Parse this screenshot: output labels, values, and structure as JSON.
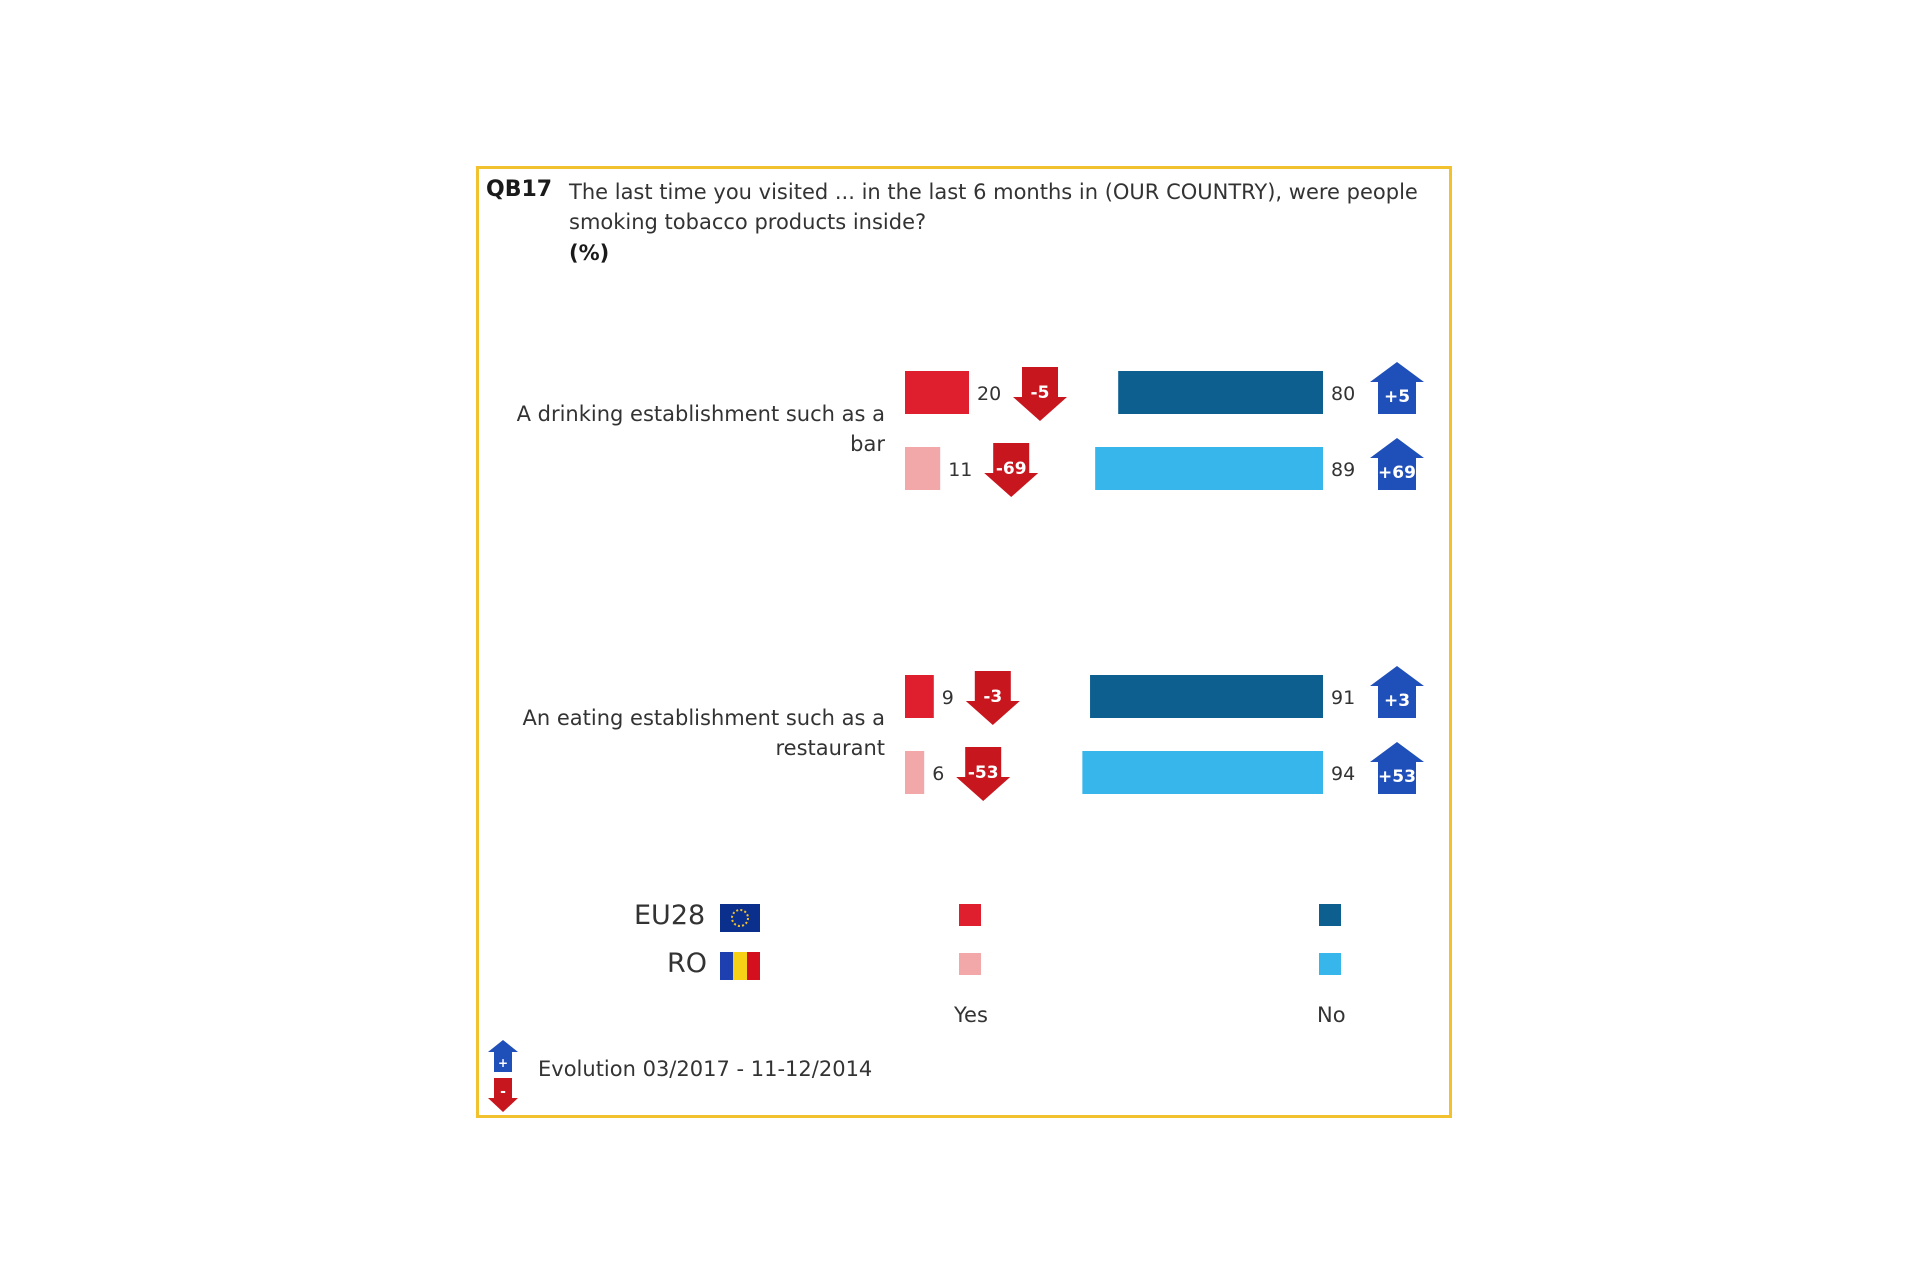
{
  "header": {
    "code": "QB17",
    "question": "The last time you visited ... in the last 6 months in (OUR COUNTRY), were people smoking tobacco products inside?",
    "unit": "(%)"
  },
  "colors": {
    "eu_yes": "#e01f2e",
    "ro_yes": "#f2a7a9",
    "eu_no": "#0d5f8f",
    "ro_no": "#37b6ec",
    "arrow_down": "#c8161f",
    "arrow_up": "#1f4fb8",
    "frame": "#f2c12e"
  },
  "chart_data": {
    "type": "bar",
    "categories": [
      "A drinking establishment such as a bar",
      "An eating establishment such as a restaurant"
    ],
    "series": [
      {
        "name": "EU28",
        "yes": [
          20,
          9
        ],
        "no": [
          80,
          91
        ],
        "yes_change": [
          "-5",
          "-3"
        ],
        "no_change": [
          "+5",
          "+3"
        ]
      },
      {
        "name": "RO",
        "yes": [
          11,
          6
        ],
        "no": [
          89,
          94
        ],
        "yes_change": [
          "-69",
          "-53"
        ],
        "no_change": [
          "+69",
          "+53"
        ]
      }
    ],
    "yes_label": "Yes",
    "no_label": "No",
    "xlim": [
      0,
      100
    ]
  },
  "legend": {
    "eu": "EU28",
    "ro": "RO",
    "yes": "Yes",
    "no": "No",
    "evolution": "Evolution 03/2017 - 11-12/2014",
    "plus_sign": "+",
    "minus_sign": "-"
  }
}
